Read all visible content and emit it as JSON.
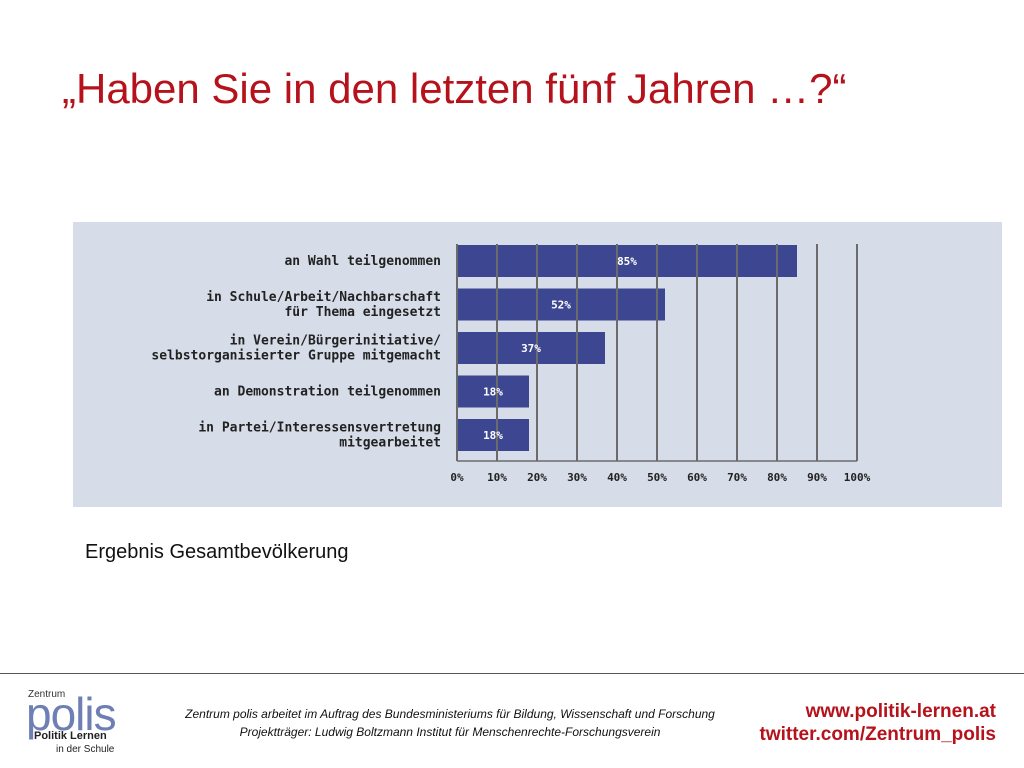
{
  "title": "„Haben Sie in den letzten fünf Jahren …?“",
  "caption": "Ergebnis Gesamtbevölkerung",
  "colors": {
    "accent": "#b5121b",
    "bar": "#3d4690",
    "panel": "#d6dde8",
    "polis_logo": "#6d7fb3"
  },
  "chart_data": {
    "type": "bar",
    "orientation": "horizontal",
    "categories": [
      [
        "an Wahl teilgenommen"
      ],
      [
        "in Schule/Arbeit/Nachbarschaft",
        "für Thema eingesetzt"
      ],
      [
        "in Verein/Bürgerinitiative/",
        "selbstorganisierter Gruppe mitgemacht"
      ],
      [
        "an Demonstration teilgenommen"
      ],
      [
        "in Partei/Interessensvertretung",
        "mitgearbeitet"
      ]
    ],
    "values": [
      85,
      52,
      37,
      18,
      18
    ],
    "value_labels": [
      "85%",
      "52%",
      "37%",
      "18%",
      "18%"
    ],
    "xlim": [
      0,
      100
    ],
    "xticks": [
      "0%",
      "10%",
      "20%",
      "30%",
      "40%",
      "50%",
      "60%",
      "70%",
      "80%",
      "90%",
      "100%"
    ],
    "grid": true
  },
  "footer": {
    "logo": {
      "small": "Zentrum",
      "name": "polis",
      "line1": "Politik Lernen",
      "line2": "in der Schule"
    },
    "info_line1": "Zentrum polis arbeitet im Auftrag des Bundesministeriums für Bildung, Wissenschaft und Forschung",
    "info_line2": "Projektträger: Ludwig Boltzmann Institut für Menschenrechte-Forschungsverein",
    "website": "www.politik-lernen.at",
    "twitter": "twitter.com/Zentrum_polis"
  }
}
